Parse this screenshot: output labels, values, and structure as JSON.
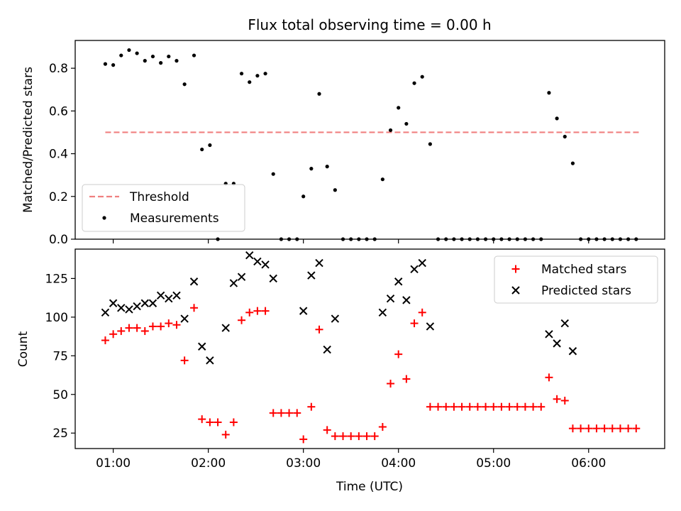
{
  "colors": {
    "threshold": "#f08080",
    "measurement": "#000000",
    "matched": "#ff0000",
    "predicted": "#000000",
    "axis": "#000000",
    "legend_border": "#cccccc"
  },
  "chart_data": [
    {
      "type": "scatter",
      "title": "Flux total observing time = 0.00 h",
      "ylabel": "Matched/Predicted stars",
      "xlabel": "",
      "xlim": [
        "00:36",
        "06:48"
      ],
      "ylim": [
        0,
        0.93
      ],
      "yticks": [
        "0.0",
        "0.2",
        "0.4",
        "0.6",
        "0.8"
      ],
      "xticks": [
        "01:00",
        "02:00",
        "03:00",
        "04:00",
        "05:00",
        "06:00"
      ],
      "legend_position": "lower-left",
      "legend": [
        "Threshold",
        "Measurements"
      ],
      "threshold": {
        "name": "Threshold",
        "value": 0.5,
        "x_start": "00:55",
        "x_end": "06:32"
      },
      "series": [
        {
          "name": "Measurements",
          "points": [
            [
              "00:55",
              0.82
            ],
            [
              "01:00",
              0.815
            ],
            [
              "01:05",
              0.86
            ],
            [
              "01:10",
              0.885
            ],
            [
              "01:15",
              0.87
            ],
            [
              "01:20",
              0.835
            ],
            [
              "01:25",
              0.855
            ],
            [
              "01:30",
              0.825
            ],
            [
              "01:35",
              0.855
            ],
            [
              "01:40",
              0.835
            ],
            [
              "01:45",
              0.725
            ],
            [
              "01:51",
              0.86
            ],
            [
              "01:56",
              0.42
            ],
            [
              "02:01",
              0.44
            ],
            [
              "02:06",
              0.0
            ],
            [
              "02:11",
              0.26
            ],
            [
              "02:16",
              0.26
            ],
            [
              "02:21",
              0.775
            ],
            [
              "02:26",
              0.735
            ],
            [
              "02:31",
              0.765
            ],
            [
              "02:36",
              0.775
            ],
            [
              "02:41",
              0.305
            ],
            [
              "02:46",
              0.0
            ],
            [
              "02:51",
              0.0
            ],
            [
              "02:56",
              0.0
            ],
            [
              "03:00",
              0.2
            ],
            [
              "03:05",
              0.33
            ],
            [
              "03:10",
              0.68
            ],
            [
              "03:15",
              0.34
            ],
            [
              "03:20",
              0.23
            ],
            [
              "03:25",
              0.0
            ],
            [
              "03:30",
              0.0
            ],
            [
              "03:35",
              0.0
            ],
            [
              "03:40",
              0.0
            ],
            [
              "03:45",
              0.0
            ],
            [
              "03:50",
              0.28
            ],
            [
              "03:55",
              0.51
            ],
            [
              "04:00",
              0.615
            ],
            [
              "04:05",
              0.54
            ],
            [
              "04:10",
              0.73
            ],
            [
              "04:15",
              0.76
            ],
            [
              "04:20",
              0.445
            ],
            [
              "04:25",
              0.0
            ],
            [
              "04:30",
              0.0
            ],
            [
              "04:35",
              0.0
            ],
            [
              "04:40",
              0.0
            ],
            [
              "04:45",
              0.0
            ],
            [
              "04:50",
              0.0
            ],
            [
              "04:55",
              0.0
            ],
            [
              "05:00",
              0.0
            ],
            [
              "05:05",
              0.0
            ],
            [
              "05:10",
              0.0
            ],
            [
              "05:15",
              0.0
            ],
            [
              "05:20",
              0.0
            ],
            [
              "05:25",
              0.0
            ],
            [
              "05:30",
              0.0
            ],
            [
              "05:35",
              0.685
            ],
            [
              "05:40",
              0.565
            ],
            [
              "05:45",
              0.48
            ],
            [
              "05:50",
              0.355
            ],
            [
              "05:55",
              0.0
            ],
            [
              "06:00",
              0.0
            ],
            [
              "06:05",
              0.0
            ],
            [
              "06:10",
              0.0
            ],
            [
              "06:15",
              0.0
            ],
            [
              "06:20",
              0.0
            ],
            [
              "06:25",
              0.0
            ],
            [
              "06:30",
              0.0
            ]
          ]
        }
      ]
    },
    {
      "type": "scatter",
      "title": "",
      "ylabel": "Count",
      "xlabel": "Time (UTC)",
      "xlim": [
        "00:36",
        "06:48"
      ],
      "ylim": [
        15,
        144
      ],
      "yticks": [
        "25",
        "50",
        "75",
        "100",
        "125"
      ],
      "xticks": [
        "01:00",
        "02:00",
        "03:00",
        "04:00",
        "05:00",
        "06:00"
      ],
      "legend_position": "upper-right",
      "legend": [
        "Matched stars",
        "Predicted stars"
      ],
      "series": [
        {
          "name": "Matched stars",
          "marker": "plus",
          "points": [
            [
              "00:55",
              85
            ],
            [
              "01:00",
              89
            ],
            [
              "01:05",
              91
            ],
            [
              "01:10",
              93
            ],
            [
              "01:15",
              93
            ],
            [
              "01:20",
              91
            ],
            [
              "01:25",
              94
            ],
            [
              "01:30",
              94
            ],
            [
              "01:35",
              96
            ],
            [
              "01:40",
              95
            ],
            [
              "01:45",
              72
            ],
            [
              "01:51",
              106
            ],
            [
              "01:56",
              34
            ],
            [
              "02:01",
              32
            ],
            [
              "02:06",
              32
            ],
            [
              "02:11",
              24
            ],
            [
              "02:16",
              32
            ],
            [
              "02:21",
              98
            ],
            [
              "02:26",
              103
            ],
            [
              "02:31",
              104
            ],
            [
              "02:36",
              104
            ],
            [
              "02:41",
              38
            ],
            [
              "02:46",
              38
            ],
            [
              "02:51",
              38
            ],
            [
              "02:56",
              38
            ],
            [
              "03:00",
              21
            ],
            [
              "03:05",
              42
            ],
            [
              "03:10",
              92
            ],
            [
              "03:15",
              27
            ],
            [
              "03:20",
              23
            ],
            [
              "03:25",
              23
            ],
            [
              "03:30",
              23
            ],
            [
              "03:35",
              23
            ],
            [
              "03:40",
              23
            ],
            [
              "03:45",
              23
            ],
            [
              "03:50",
              29
            ],
            [
              "03:55",
              57
            ],
            [
              "04:00",
              76
            ],
            [
              "04:05",
              60
            ],
            [
              "04:10",
              96
            ],
            [
              "04:15",
              103
            ],
            [
              "04:20",
              42
            ],
            [
              "04:25",
              42
            ],
            [
              "04:30",
              42
            ],
            [
              "04:35",
              42
            ],
            [
              "04:40",
              42
            ],
            [
              "04:45",
              42
            ],
            [
              "04:50",
              42
            ],
            [
              "04:55",
              42
            ],
            [
              "05:00",
              42
            ],
            [
              "05:05",
              42
            ],
            [
              "05:10",
              42
            ],
            [
              "05:15",
              42
            ],
            [
              "05:20",
              42
            ],
            [
              "05:25",
              42
            ],
            [
              "05:30",
              42
            ],
            [
              "05:35",
              61
            ],
            [
              "05:40",
              47
            ],
            [
              "05:45",
              46
            ],
            [
              "05:50",
              28
            ],
            [
              "05:55",
              28
            ],
            [
              "06:00",
              28
            ],
            [
              "06:05",
              28
            ],
            [
              "06:10",
              28
            ],
            [
              "06:15",
              28
            ],
            [
              "06:20",
              28
            ],
            [
              "06:25",
              28
            ],
            [
              "06:30",
              28
            ]
          ]
        },
        {
          "name": "Predicted stars",
          "marker": "x",
          "points": [
            [
              "00:55",
              103
            ],
            [
              "01:00",
              109
            ],
            [
              "01:05",
              106
            ],
            [
              "01:10",
              105
            ],
            [
              "01:15",
              107
            ],
            [
              "01:20",
              109
            ],
            [
              "01:25",
              109
            ],
            [
              "01:30",
              114
            ],
            [
              "01:35",
              112
            ],
            [
              "01:40",
              114
            ],
            [
              "01:45",
              99
            ],
            [
              "01:51",
              123
            ],
            [
              "01:56",
              81
            ],
            [
              "02:01",
              72
            ],
            [
              "02:11",
              93
            ],
            [
              "02:16",
              122
            ],
            [
              "02:21",
              126
            ],
            [
              "02:26",
              140
            ],
            [
              "02:31",
              136
            ],
            [
              "02:36",
              134
            ],
            [
              "02:41",
              125
            ],
            [
              "03:00",
              104
            ],
            [
              "03:05",
              127
            ],
            [
              "03:10",
              135
            ],
            [
              "03:15",
              79
            ],
            [
              "03:20",
              99
            ],
            [
              "03:50",
              103
            ],
            [
              "03:55",
              112
            ],
            [
              "04:00",
              123
            ],
            [
              "04:05",
              111
            ],
            [
              "04:10",
              131
            ],
            [
              "04:15",
              135
            ],
            [
              "04:20",
              94
            ],
            [
              "05:35",
              89
            ],
            [
              "05:40",
              83
            ],
            [
              "05:45",
              96
            ],
            [
              "05:50",
              78
            ]
          ]
        }
      ]
    }
  ]
}
